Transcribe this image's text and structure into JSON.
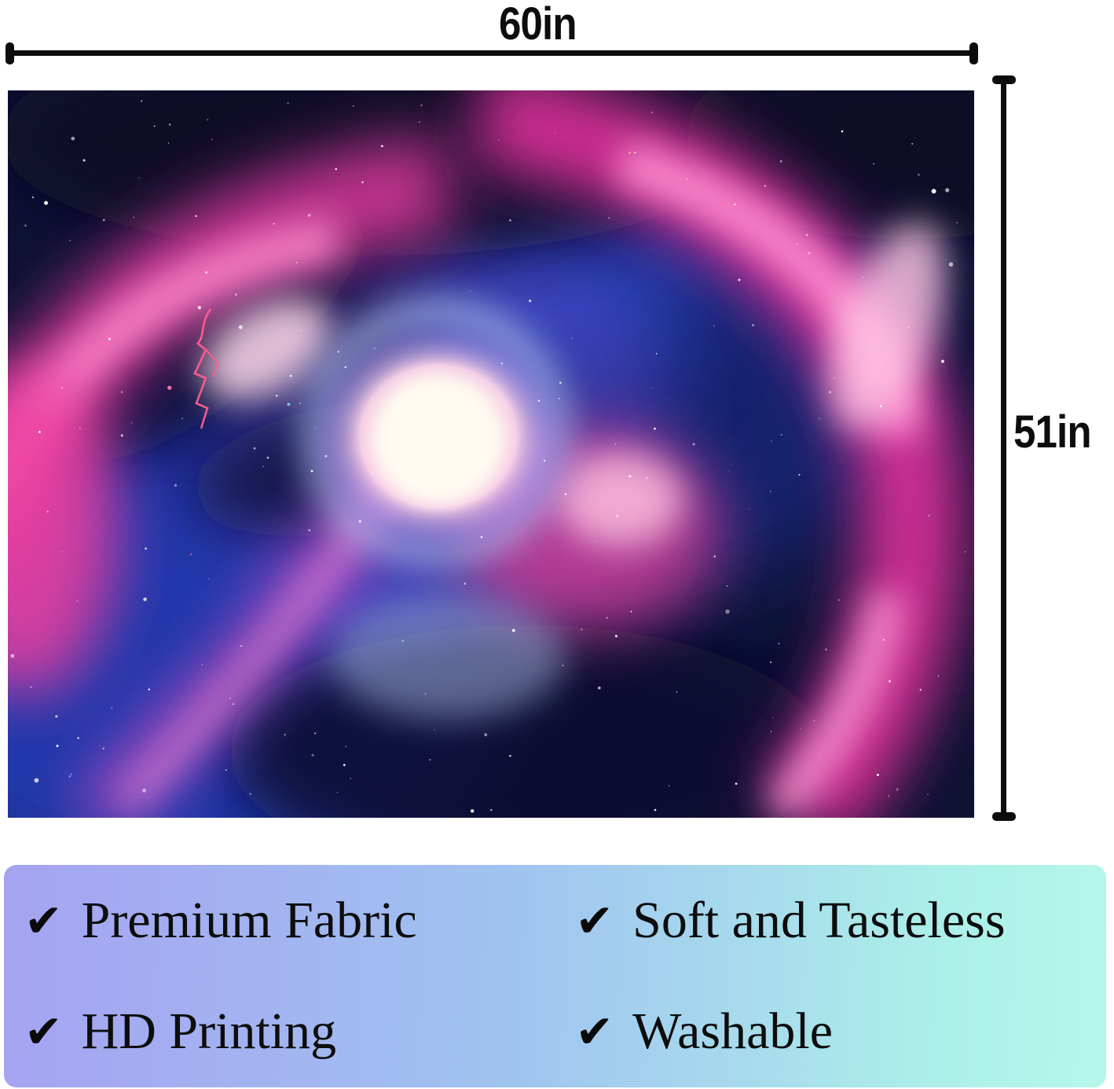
{
  "dimensions": {
    "width_label": "60in",
    "height_label": "51in",
    "line_color": "#0d0d0d"
  },
  "artwork": {
    "description": "Purple-pink galaxy wormhole vortex space backdrop with bright white tunnel core, magenta nebula arcs, blue starfields and a small red lightning bolt",
    "palette": {
      "base_navy": "#0e1233",
      "deep_blue": "#2742c9",
      "magenta": "#e4309d",
      "light_pink": "#ff8ecf",
      "pale_pink": "#ffd9ec",
      "core_white": "#fffaf2",
      "lightning": "#ff5d8f"
    },
    "star_colors": [
      "#ffffff",
      "#ffb36b",
      "#ff7fae",
      "#8fd6ff"
    ]
  },
  "banner": {
    "gradient_left": "#a5a3f1",
    "gradient_middle": "#a0c3f0",
    "gradient_right": "#b5f7ea"
  },
  "features": {
    "check_glyph": "✔",
    "items": [
      {
        "label": "Premium Fabric"
      },
      {
        "label": "Soft and Tasteless"
      },
      {
        "label": "HD Printing"
      },
      {
        "label": "Washable"
      }
    ]
  }
}
